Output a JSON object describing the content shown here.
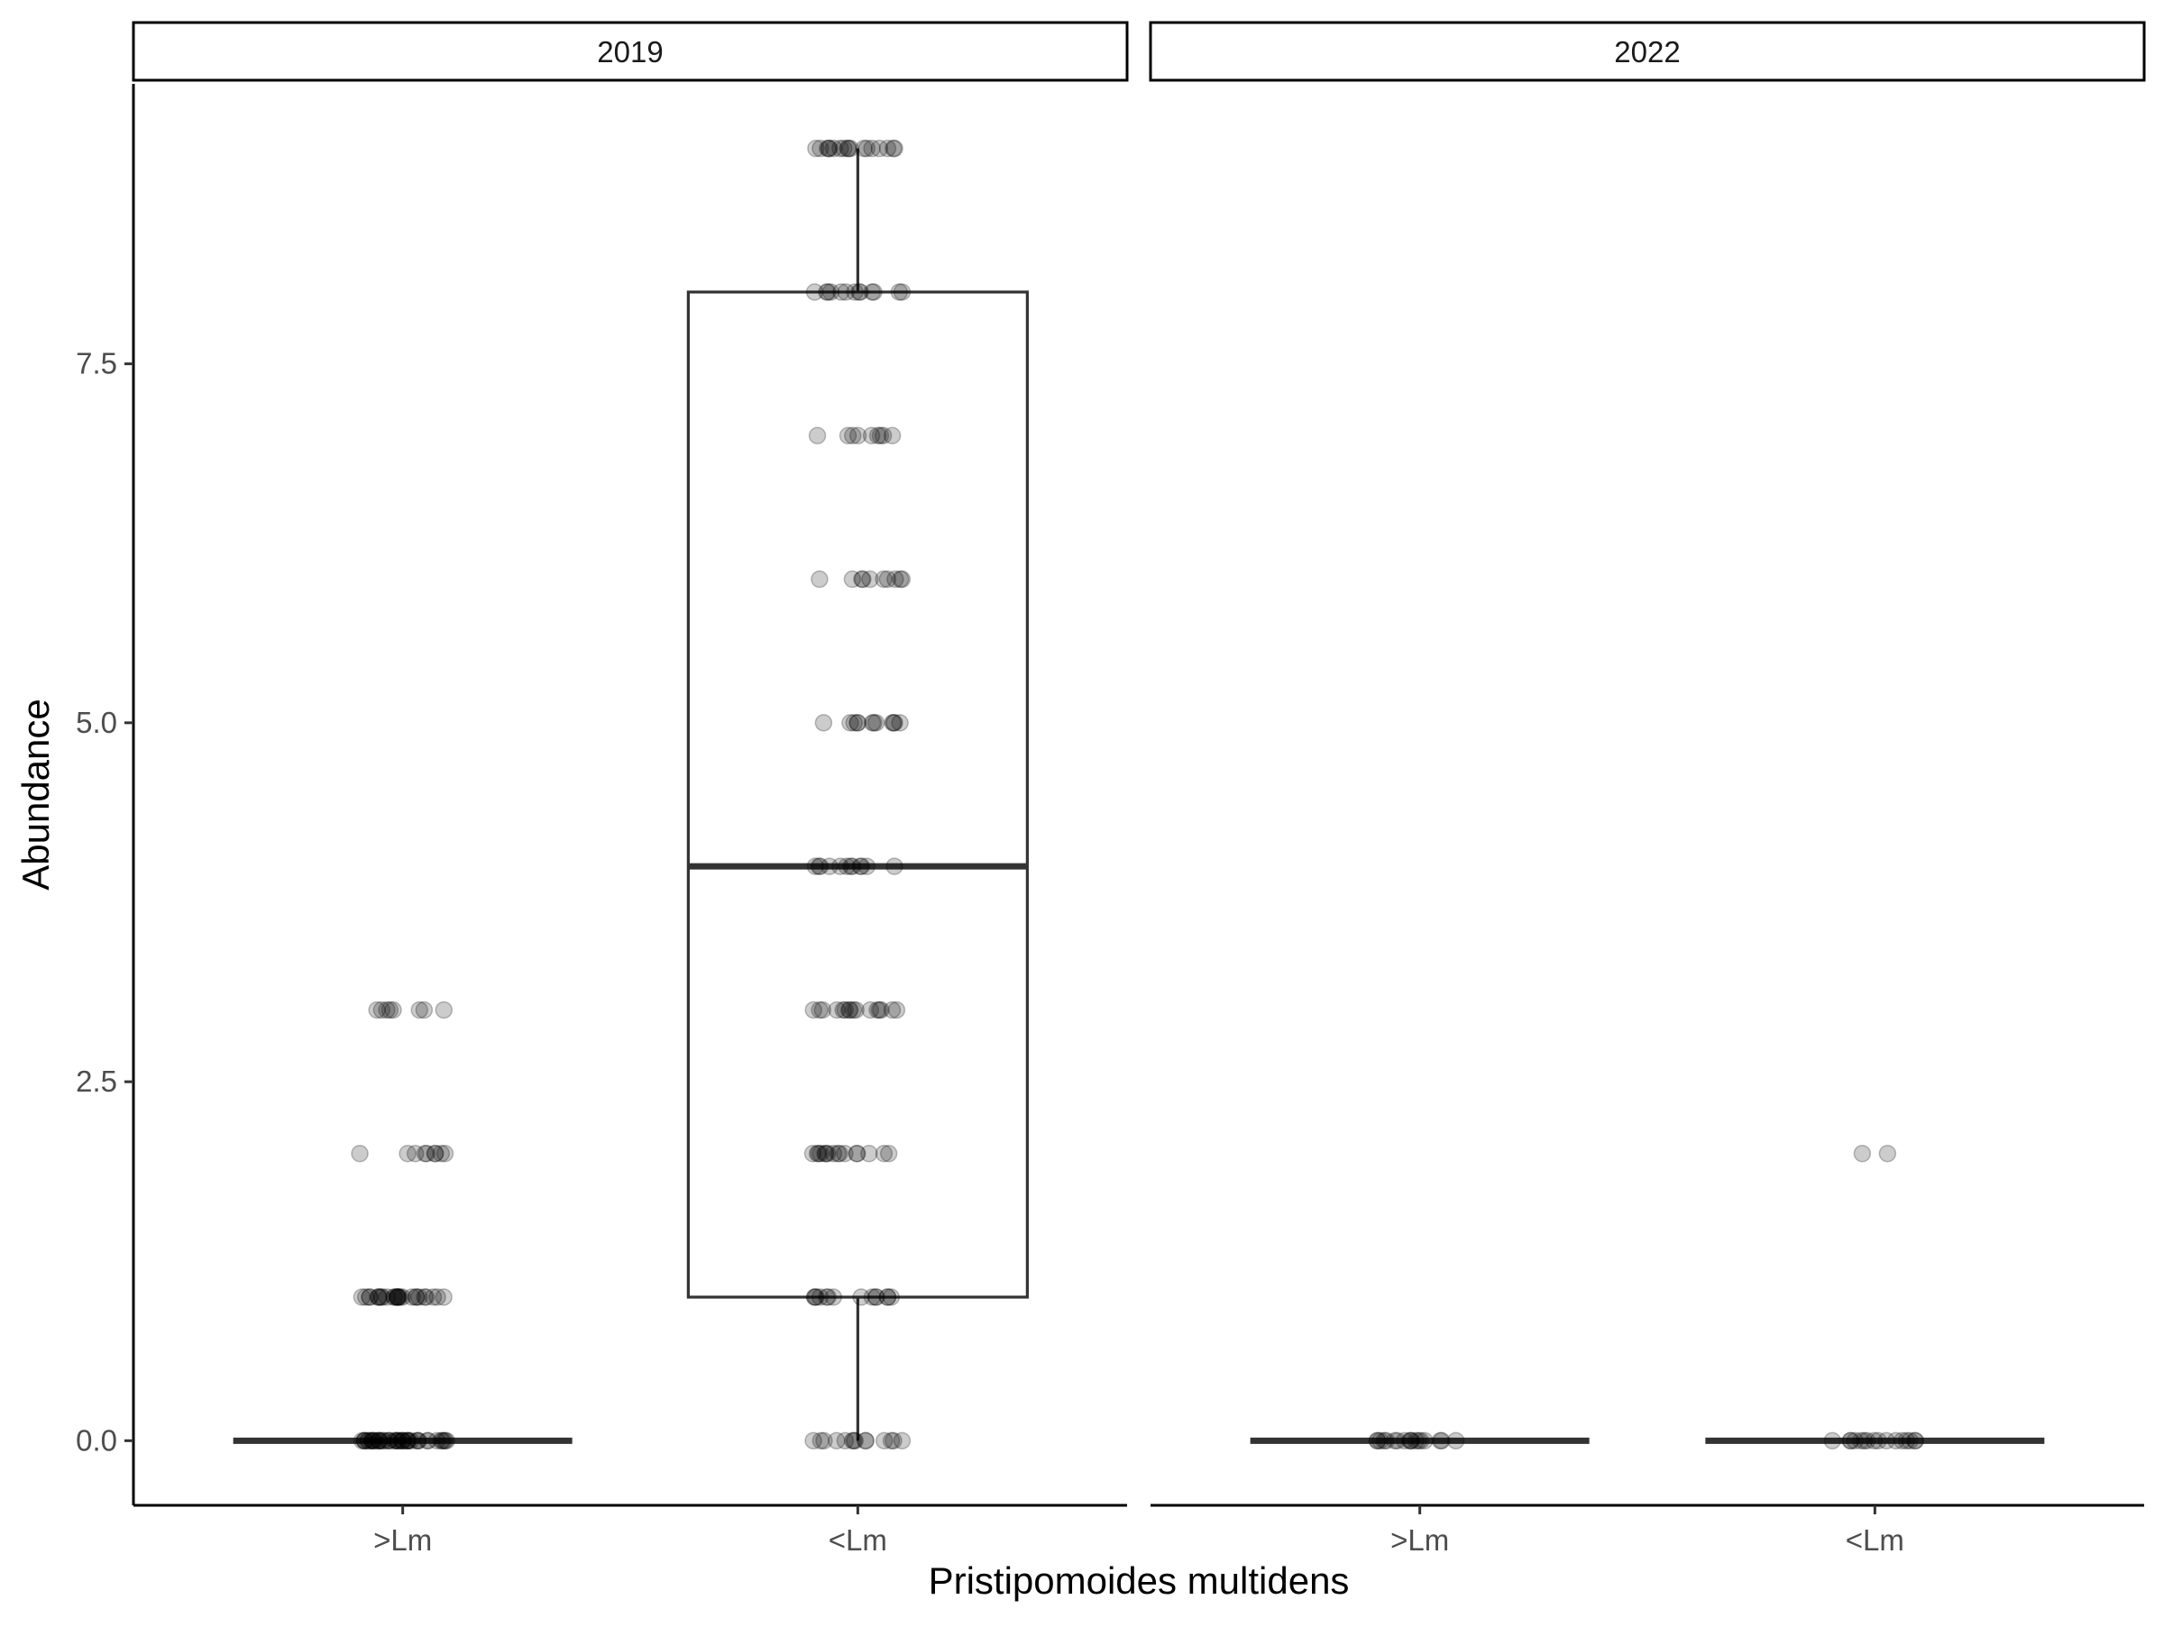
{
  "chart_data": {
    "type": "box",
    "title": "",
    "xlabel": "Pristipomoides multidens",
    "ylabel": "Abundance",
    "ylim": [
      -0.45,
      9.45
    ],
    "y_ticks": [
      0.0,
      2.5,
      5.0,
      7.5
    ],
    "y_tick_labels": [
      "0.0",
      "2.5",
      "5.0",
      "7.5"
    ],
    "categories": [
      ">Lm",
      "<Lm"
    ],
    "grid": false,
    "jitter_points": true,
    "facets": [
      {
        "label": "2019",
        "boxes": [
          {
            "category": ">Lm",
            "min": 0,
            "q1": 0,
            "median": 0,
            "q3": 0,
            "max": 0,
            "points": [
              {
                "y": 0,
                "n": 45
              },
              {
                "y": 1,
                "n": 28
              },
              {
                "y": 2,
                "n": 9
              },
              {
                "y": 3,
                "n": 8
              }
            ]
          },
          {
            "category": "<Lm",
            "min": 0,
            "q1": 1,
            "median": 4,
            "q3": 8,
            "max": 9,
            "points": [
              {
                "y": 0,
                "n": 14
              },
              {
                "y": 1,
                "n": 14
              },
              {
                "y": 2,
                "n": 16
              },
              {
                "y": 3,
                "n": 16
              },
              {
                "y": 4,
                "n": 12
              },
              {
                "y": 5,
                "n": 12
              },
              {
                "y": 6,
                "n": 10
              },
              {
                "y": 7,
                "n": 9
              },
              {
                "y": 8,
                "n": 13
              },
              {
                "y": 9,
                "n": 18
              }
            ]
          }
        ]
      },
      {
        "label": "2022",
        "boxes": [
          {
            "category": ">Lm",
            "min": 0,
            "q1": 0,
            "median": 0,
            "q3": 0,
            "max": 0,
            "points": [
              {
                "y": 0,
                "n": 18
              }
            ]
          },
          {
            "category": "<Lm",
            "min": 0,
            "q1": 0,
            "median": 0,
            "q3": 0,
            "max": 0,
            "points": [
              {
                "y": 0,
                "n": 16
              },
              {
                "y": 2,
                "n": 2
              }
            ]
          }
        ]
      }
    ]
  }
}
